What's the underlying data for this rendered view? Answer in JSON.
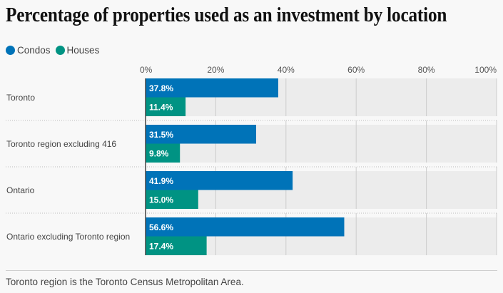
{
  "header": {
    "title": "Percentage of properties used as an investment by location"
  },
  "legend": {
    "items": [
      {
        "label": "Condos",
        "color": "#0073b8"
      },
      {
        "label": "Houses",
        "color": "#009383"
      }
    ]
  },
  "colors": {
    "plot_background": "#ececec",
    "gridline": "#cccccc",
    "zero_axis": "#444444",
    "separator": "#bbbbbb"
  },
  "chart_data": {
    "type": "bar",
    "orientation": "horizontal",
    "title": "Percentage of properties used as an investment by location",
    "xlabel": "",
    "ylabel": "",
    "xlim": [
      0,
      100
    ],
    "x_ticks": [
      0,
      20,
      40,
      60,
      80,
      100
    ],
    "x_tick_labels": [
      "0%",
      "20%",
      "40%",
      "60%",
      "80%",
      "100%"
    ],
    "grid": true,
    "legend_position": "top-left",
    "categories": [
      "Toronto",
      "Toronto region excluding 416",
      "Ontario",
      "Ontario excluding Toronto region"
    ],
    "series": [
      {
        "name": "Condos",
        "color": "#0073b8",
        "values": [
          37.8,
          31.5,
          41.9,
          56.6
        ],
        "labels": [
          "37.8%",
          "31.5%",
          "41.9%",
          "56.6%"
        ]
      },
      {
        "name": "Houses",
        "color": "#009383",
        "values": [
          11.4,
          9.8,
          15.0,
          17.4
        ],
        "labels": [
          "11.4%",
          "9.8%",
          "15.0%",
          "17.4%"
        ]
      }
    ]
  },
  "footer": {
    "note": "Toronto region is the Toronto Census Metropolitan Area."
  }
}
